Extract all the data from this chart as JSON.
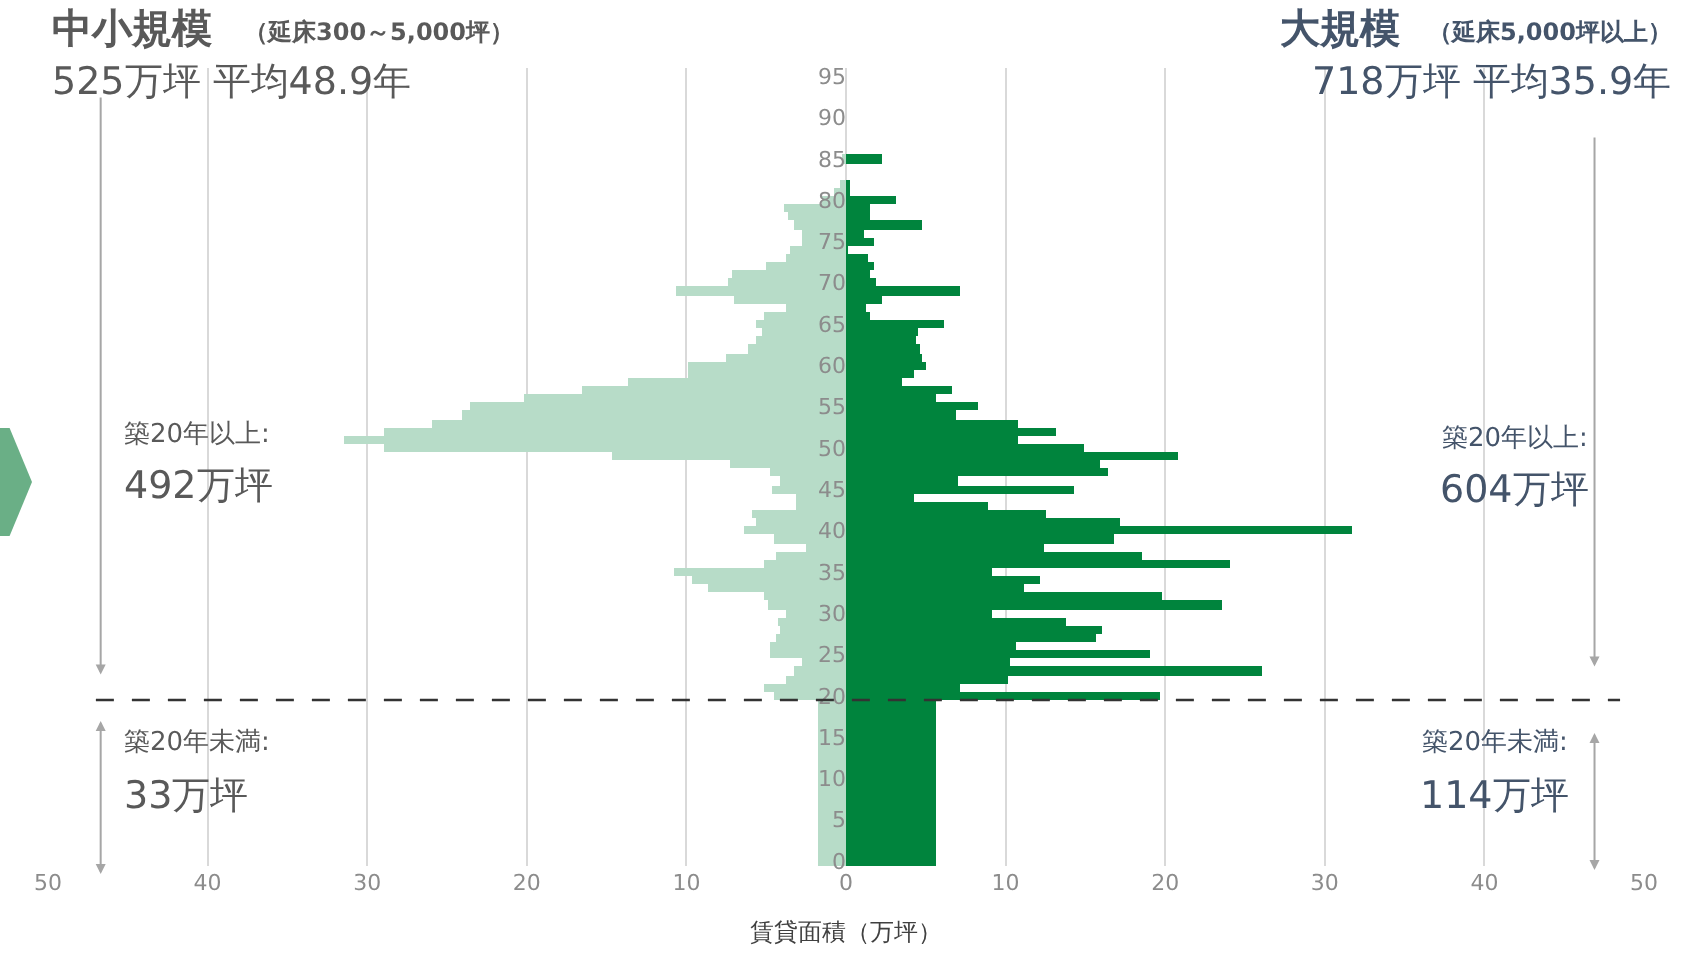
{
  "chart_data": {
    "type": "bar",
    "orientation": "horizontal",
    "stacked": true,
    "xlabel": "賃貸面積（万坪）",
    "x": [
      0,
      1,
      2,
      3,
      4,
      5,
      6,
      7,
      8,
      9,
      10,
      11,
      12,
      13,
      14,
      15,
      16,
      17,
      18,
      19,
      20,
      21,
      22,
      23,
      24,
      25,
      26,
      27,
      28,
      29,
      30,
      31,
      32,
      33,
      34,
      35,
      36,
      37,
      38,
      39,
      40,
      41,
      42,
      43,
      44,
      45,
      46,
      47,
      48,
      49,
      50,
      51,
      52,
      53,
      54,
      55,
      56,
      57,
      58,
      59,
      60,
      61,
      62,
      63,
      64,
      65,
      66,
      67,
      68,
      69,
      70,
      71,
      72,
      73,
      74,
      75,
      76,
      77,
      78,
      79,
      80,
      81,
      82,
      83,
      84,
      85
    ],
    "series": [
      {
        "color": "#b7dcc8",
        "values": [
          -1.7,
          -1.7,
          -1.7,
          -1.7,
          -1.7,
          -1.7,
          -1.7,
          -1.7,
          -1.7,
          -1.7,
          -1.7,
          -1.7,
          -1.7,
          -1.7,
          -1.7,
          -1.7,
          -1.7,
          -1.7,
          -1.7,
          -1.7,
          -4.5,
          -5.2,
          -3.8,
          -3.2,
          -2.8,
          -4.7,
          -4.7,
          -4.4,
          -4.1,
          -4.3,
          -3.8,
          -4.9,
          -5.2,
          -8.6,
          -9.6,
          -10.8,
          -5.2,
          -4.4,
          -2.5,
          -4.5,
          -6.4,
          -5.7,
          -5.9,
          -3.1,
          -3.1,
          -4.6,
          -4.1,
          -4.7,
          -7.3,
          -14.7,
          -28.9,
          -31.5,
          -28.9,
          -26,
          -24,
          -23.5,
          -20.2,
          -16.6,
          -13.7,
          -9.9,
          -9.9,
          -7.5,
          -6.1,
          -5.7,
          -5.3,
          -5.6,
          -5.2,
          -3.8,
          -7,
          -10.7,
          -7.4,
          -7.1,
          -5,
          -3.8,
          -3.5,
          -2.8,
          -2.7,
          -3.2,
          -3.6,
          -3.9,
          -1.5,
          -0.7,
          -0.4,
          null,
          null,
          -0.2
        ]
      },
      {
        "color": "#00843d",
        "values": [
          5.7,
          5.7,
          5.7,
          5.7,
          5.7,
          5.7,
          5.7,
          5.7,
          5.7,
          5.7,
          5.7,
          5.7,
          5.7,
          5.7,
          5.7,
          5.7,
          5.7,
          5.7,
          5.7,
          5.7,
          19.7,
          7.1,
          10.1,
          26.1,
          10.3,
          19.1,
          10.6,
          15.7,
          16.1,
          13.8,
          9.2,
          23.5,
          19.8,
          11.1,
          12.2,
          9.2,
          24.1,
          18.6,
          12.4,
          16.8,
          31.7,
          17.2,
          12.5,
          8.9,
          4.3,
          14.3,
          7,
          16.4,
          15.9,
          20.8,
          14.9,
          10.8,
          13.1,
          10.8,
          6.9,
          8.3,
          5.6,
          6.6,
          3.5,
          4.3,
          5,
          4.8,
          4.6,
          4.4,
          4.5,
          6.1,
          1.5,
          1.3,
          2.3,
          7.1,
          1.9,
          1.5,
          1.8,
          1.4,
          0.1,
          1.7,
          1.1,
          4.8,
          1.5,
          1.5,
          3.1,
          0.3,
          0.2,
          0,
          0,
          2.2
        ]
      }
    ],
    "xlim": [
      -50,
      50
    ],
    "xticks": [
      {
        "value": -50,
        "label": "50"
      },
      {
        "value": -40,
        "label": "40"
      },
      {
        "value": -30,
        "label": "30"
      },
      {
        "value": -20,
        "label": "20"
      },
      {
        "value": -10,
        "label": "10"
      },
      0,
      10,
      20,
      30,
      40,
      50
    ],
    "ylim": [
      -0.6,
      96
    ],
    "yticks": [
      0,
      5,
      10,
      15,
      20,
      25,
      30,
      35,
      40,
      45,
      50,
      55,
      60,
      65,
      70,
      75,
      80,
      85,
      90,
      95
    ],
    "grid": "x",
    "ref_lines": [
      {
        "axis": "y",
        "value": 19.5,
        "color": "#333333",
        "line_style": "dashed"
      }
    ],
    "annotations": [
      "中小規模",
      "（延床300～5,000坪）",
      "525万坪 平均48.9年",
      "大規模",
      "（延床5,000坪以上）",
      "718万坪 平均35.9年",
      "築20年以上:",
      "492万坪",
      "築20年以上:",
      "604万坪",
      "築20年未満:",
      "33万坪",
      "築20年未満:",
      "114万坪"
    ]
  }
}
